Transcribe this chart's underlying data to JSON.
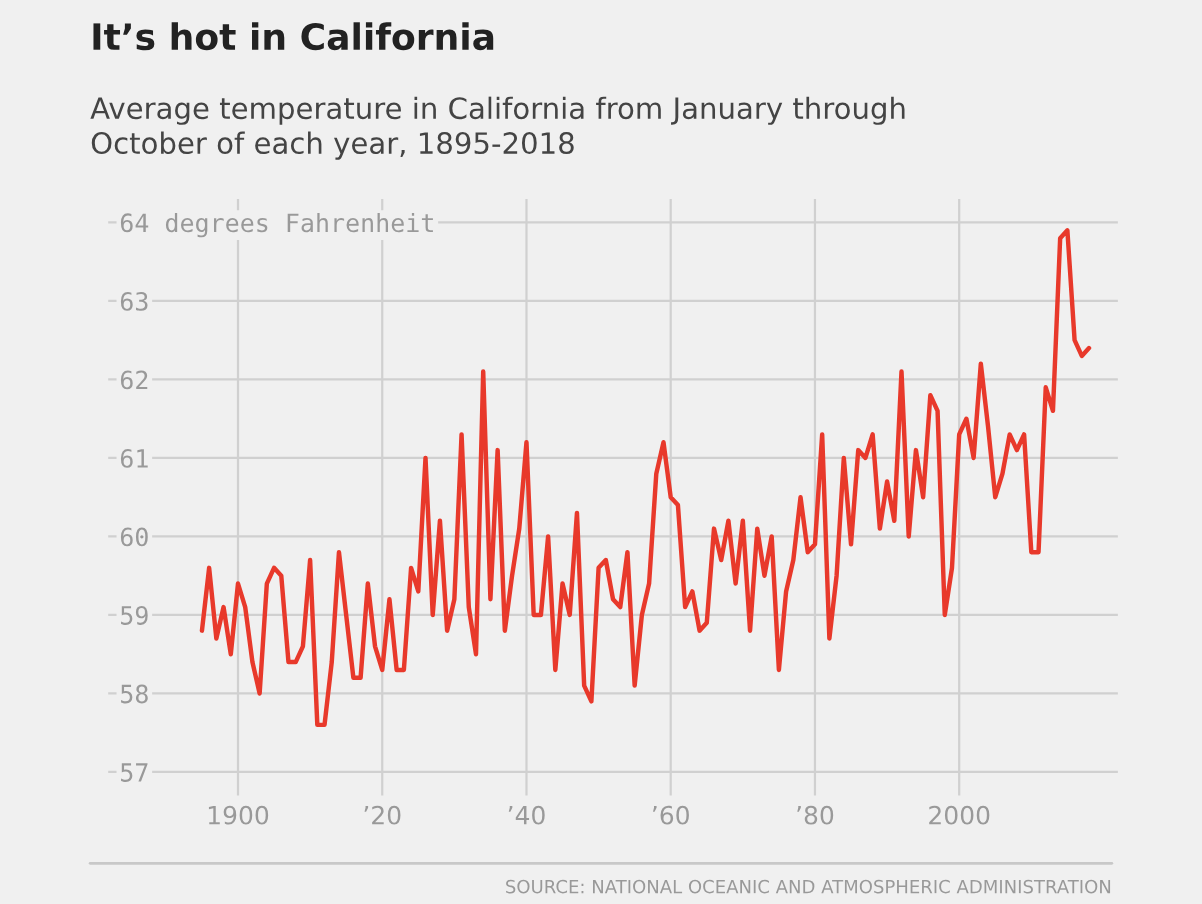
{
  "chart_data": {
    "type": "line",
    "title": "It’s hot in California",
    "subtitle": "Average temperature in California from January through\nOctober of each year, 1895-2018",
    "annotations": [
      "SOURCE: NATIONAL OCEANIC AND ATMOSPHERIC ADMINISTRATION"
    ],
    "x": [
      1895,
      1896,
      1897,
      1898,
      1899,
      1900,
      1901,
      1902,
      1903,
      1904,
      1905,
      1906,
      1907,
      1908,
      1909,
      1910,
      1911,
      1912,
      1913,
      1914,
      1915,
      1916,
      1917,
      1918,
      1919,
      1920,
      1921,
      1922,
      1923,
      1924,
      1925,
      1926,
      1927,
      1928,
      1929,
      1930,
      1931,
      1932,
      1933,
      1934,
      1935,
      1936,
      1937,
      1938,
      1939,
      1940,
      1941,
      1942,
      1943,
      1944,
      1945,
      1946,
      1947,
      1948,
      1949,
      1950,
      1951,
      1952,
      1953,
      1954,
      1955,
      1956,
      1957,
      1958,
      1959,
      1960,
      1961,
      1962,
      1963,
      1964,
      1965,
      1966,
      1967,
      1968,
      1969,
      1970,
      1971,
      1972,
      1973,
      1974,
      1975,
      1976,
      1977,
      1978,
      1979,
      1980,
      1981,
      1982,
      1983,
      1984,
      1985,
      1986,
      1987,
      1988,
      1989,
      1990,
      1991,
      1992,
      1993,
      1994,
      1995,
      1996,
      1997,
      1998,
      1999,
      2000,
      2001,
      2002,
      2003,
      2004,
      2005,
      2006,
      2007,
      2008,
      2009,
      2010,
      2011,
      2012,
      2013,
      2014,
      2015,
      2016,
      2017,
      2018
    ],
    "series": [
      {
        "color": "#e8392b",
        "values": [
          58.8,
          59.6,
          58.7,
          59.1,
          58.5,
          59.4,
          59.1,
          58.4,
          58.0,
          59.4,
          59.6,
          59.5,
          58.4,
          58.4,
          58.6,
          59.7,
          57.6,
          57.6,
          58.4,
          59.8,
          59.0,
          58.2,
          58.2,
          59.4,
          58.6,
          58.3,
          59.2,
          58.3,
          58.3,
          59.6,
          59.3,
          61.0,
          59.0,
          60.2,
          58.8,
          59.2,
          61.3,
          59.1,
          58.5,
          62.1,
          59.2,
          61.1,
          58.8,
          59.5,
          60.1,
          61.2,
          59.0,
          59.0,
          60.0,
          58.3,
          59.4,
          59.0,
          60.3,
          58.1,
          57.9,
          59.6,
          59.7,
          59.2,
          59.1,
          59.8,
          58.1,
          59.0,
          59.4,
          60.8,
          61.2,
          60.5,
          60.4,
          59.1,
          59.3,
          58.8,
          58.9,
          60.1,
          59.7,
          60.2,
          59.4,
          60.2,
          58.8,
          60.1,
          59.5,
          60.0,
          58.3,
          59.3,
          59.7,
          60.5,
          59.8,
          59.9,
          61.3,
          58.7,
          59.5,
          61.0,
          59.9,
          61.1,
          61.0,
          61.3,
          60.1,
          60.7,
          60.2,
          62.1,
          60.0,
          61.1,
          60.5,
          61.8,
          61.6,
          59.0,
          59.6,
          61.3,
          61.5,
          61.0,
          62.2,
          61.4,
          60.5,
          60.8,
          61.3,
          61.1,
          61.3,
          59.8,
          59.8,
          61.9,
          61.6,
          63.8,
          63.9,
          62.5,
          62.3,
          62.4
        ]
      }
    ],
    "xlim": [
      1882,
      2022
    ],
    "xticks": [
      1900,
      {
        "value": 1920,
        "label": "’20"
      },
      {
        "value": 1940,
        "label": "’40"
      },
      {
        "value": 1960,
        "label": "’60"
      },
      {
        "value": 1980,
        "label": "’80"
      },
      2000
    ],
    "ylim": [
      56.7,
      64.3
    ],
    "yticks": [
      57,
      58,
      59,
      60,
      61,
      62,
      63,
      {
        "value": 64,
        "label": "64 degrees Fahrenheit"
      }
    ],
    "grid": true,
    "line_style": "solid"
  }
}
